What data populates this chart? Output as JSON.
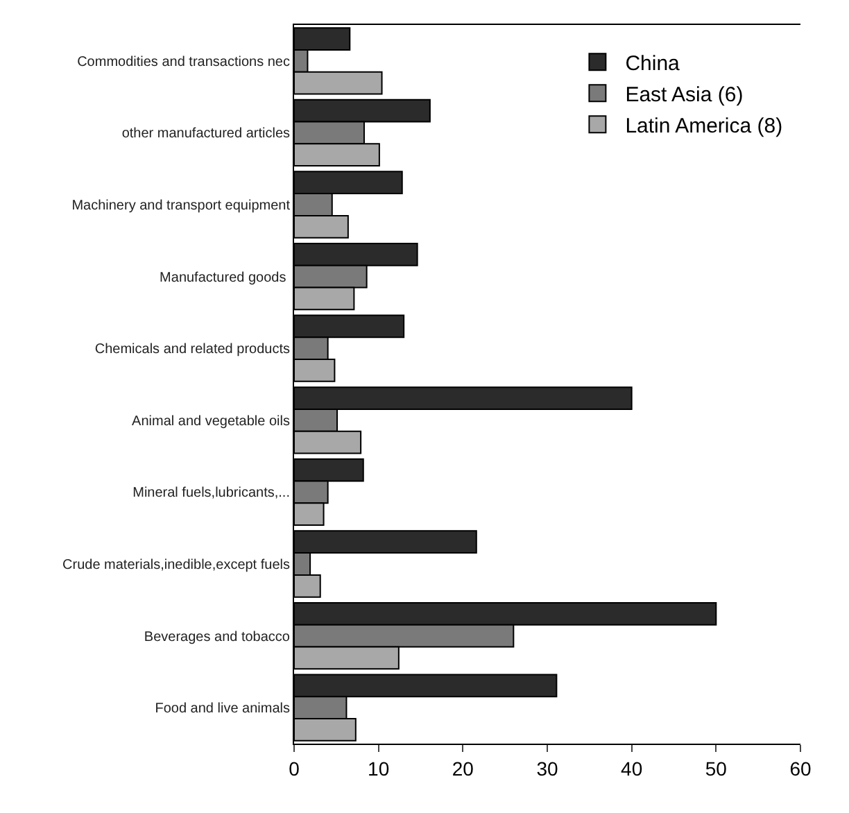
{
  "chart_data": {
    "type": "bar",
    "orientation": "horizontal",
    "categories": [
      "Commodities and transactions nec",
      "other manufactured articles",
      "Machinery and transport equipment",
      "Manufactured goods ",
      "Chemicals and related products",
      "Animal and vegetable oils",
      "Mineral fuels,lubricants,...",
      "Crude materials,inedible,except fuels",
      "Beverages and tobacco",
      "Food and live animals"
    ],
    "series": [
      {
        "name": "China",
        "color": "#2b2b2b",
        "values": [
          6.6,
          16.1,
          12.8,
          14.6,
          13.0,
          40,
          8.2,
          21.6,
          50,
          31.1
        ]
      },
      {
        "name": "East Asia (6)",
        "color": "#7a7a7a",
        "values": [
          1.6,
          8.3,
          4.5,
          8.6,
          4.0,
          5.1,
          4.0,
          1.9,
          26,
          6.2
        ]
      },
      {
        "name": "Latin America (8)",
        "color": "#a8a8a8",
        "values": [
          10.4,
          10.1,
          6.4,
          7.1,
          4.8,
          7.9,
          3.5,
          3.1,
          12.4,
          7.3
        ]
      }
    ],
    "xlim": [
      0,
      60
    ],
    "xticks": [
      0,
      10,
      20,
      30,
      40,
      50,
      60
    ],
    "legend": "top right"
  }
}
